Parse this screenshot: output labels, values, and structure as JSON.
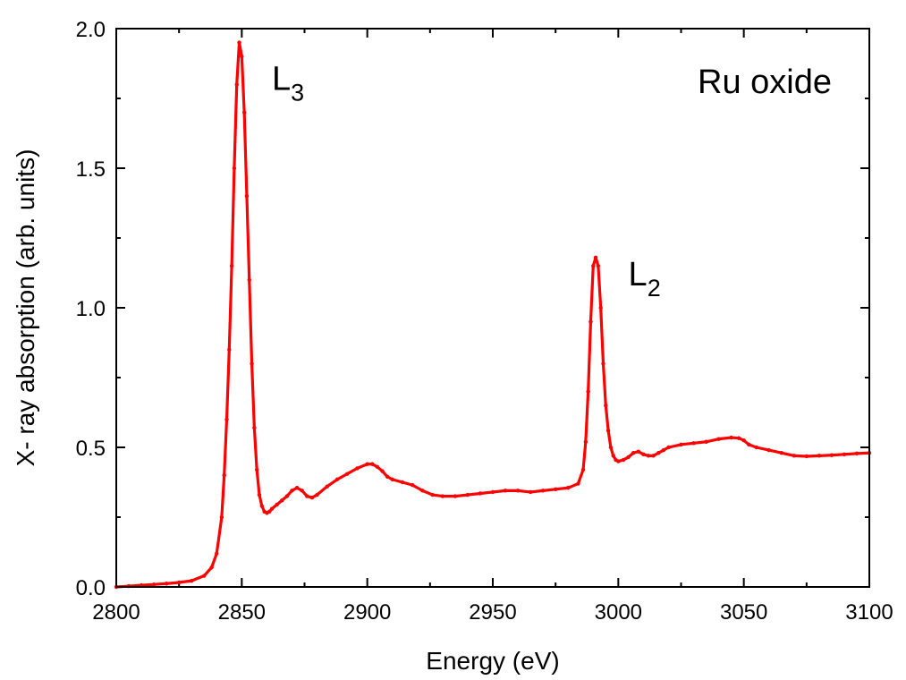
{
  "chart_data": {
    "type": "scatter",
    "title": "",
    "xlabel": "Energy (eV)",
    "ylabel": "X- ray absorption (arb. units)",
    "xlim": [
      2800,
      3100
    ],
    "ylim": [
      0.0,
      2.0
    ],
    "xticks": [
      "2800",
      "2850",
      "2900",
      "2950",
      "3000",
      "3050",
      "3100"
    ],
    "yticks": [
      "0.0",
      "0.5",
      "1.0",
      "1.5",
      "2.0"
    ],
    "grid": false,
    "series_color": "#ff0000",
    "annotations": {
      "sample": "Ru oxide",
      "l3_main": "L",
      "l3_sub": "3",
      "l2_main": "L",
      "l2_sub": "2"
    },
    "series": [
      {
        "x": [
          2800,
          2805,
          2810,
          2815,
          2820,
          2825,
          2830,
          2835,
          2838,
          2840,
          2842,
          2843,
          2844,
          2845,
          2846,
          2847,
          2848,
          2849,
          2850,
          2851,
          2852,
          2853,
          2854,
          2855,
          2856,
          2857,
          2858,
          2859,
          2860,
          2861,
          2862,
          2864,
          2866,
          2868,
          2870,
          2872,
          2874,
          2876,
          2878,
          2880,
          2884,
          2888,
          2892,
          2896,
          2900,
          2902,
          2904,
          2906,
          2908,
          2910,
          2914,
          2918,
          2922,
          2926,
          2930,
          2935,
          2940,
          2945,
          2950,
          2955,
          2960,
          2965,
          2970,
          2975,
          2980,
          2984,
          2986,
          2987,
          2988,
          2989,
          2990,
          2991,
          2992,
          2993,
          2994,
          2995,
          2996,
          2997,
          2998,
          2999,
          3000,
          3002,
          3004,
          3006,
          3008,
          3010,
          3012,
          3014,
          3016,
          3018,
          3020,
          3025,
          3030,
          3035,
          3040,
          3045,
          3048,
          3050,
          3052,
          3055,
          3060,
          3065,
          3070,
          3075,
          3080,
          3085,
          3090,
          3095,
          3100
        ],
        "y": [
          0.0,
          0.003,
          0.006,
          0.009,
          0.012,
          0.016,
          0.022,
          0.04,
          0.07,
          0.12,
          0.25,
          0.4,
          0.6,
          0.85,
          1.15,
          1.5,
          1.8,
          1.95,
          1.9,
          1.7,
          1.4,
          1.1,
          0.8,
          0.57,
          0.42,
          0.33,
          0.29,
          0.27,
          0.265,
          0.27,
          0.28,
          0.295,
          0.31,
          0.325,
          0.345,
          0.355,
          0.345,
          0.325,
          0.32,
          0.33,
          0.36,
          0.385,
          0.405,
          0.425,
          0.44,
          0.44,
          0.43,
          0.415,
          0.395,
          0.385,
          0.375,
          0.365,
          0.345,
          0.33,
          0.325,
          0.325,
          0.33,
          0.335,
          0.34,
          0.345,
          0.345,
          0.34,
          0.345,
          0.35,
          0.355,
          0.37,
          0.42,
          0.52,
          0.7,
          0.95,
          1.15,
          1.18,
          1.15,
          1.0,
          0.8,
          0.65,
          0.56,
          0.5,
          0.47,
          0.455,
          0.45,
          0.455,
          0.465,
          0.48,
          0.485,
          0.475,
          0.47,
          0.47,
          0.48,
          0.49,
          0.5,
          0.51,
          0.515,
          0.52,
          0.53,
          0.535,
          0.533,
          0.525,
          0.51,
          0.5,
          0.49,
          0.48,
          0.47,
          0.468,
          0.47,
          0.472,
          0.475,
          0.478,
          0.48
        ]
      }
    ]
  }
}
